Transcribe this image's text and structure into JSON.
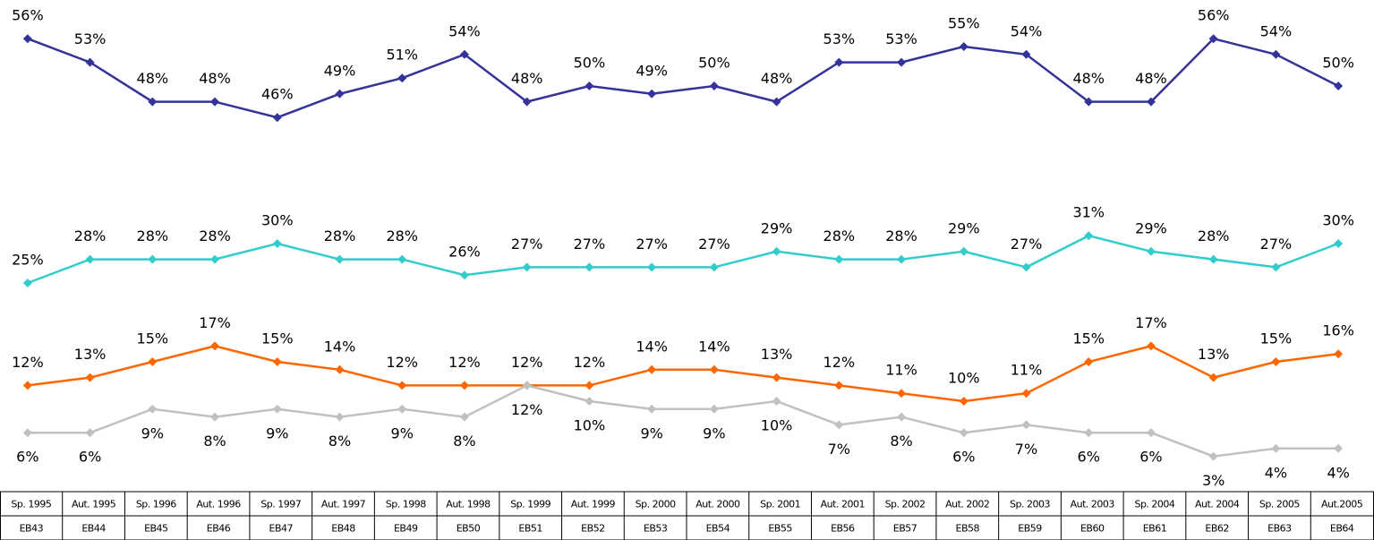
{
  "chart_data": {
    "type": "line",
    "categories": [
      "Sp. 1995",
      "Aut. 1995",
      "Sp. 1996",
      "Aut. 1996",
      "Sp. 1997",
      "Aut. 1997",
      "Sp. 1998",
      "Aut. 1998",
      "Sp. 1999",
      "Aut. 1999",
      "Sp. 2000",
      "Aut. 2000",
      "Sp. 2001",
      "Aut. 2001",
      "Sp. 2002",
      "Aut. 2002",
      "Sp. 2003",
      "Aut. 2003",
      "Sp. 2004",
      "Aut. 2004",
      "Sp. 2005",
      "Aut.2005"
    ],
    "category_codes": [
      "EB43",
      "EB44",
      "EB45",
      "EB46",
      "EB47",
      "EB48",
      "EB49",
      "EB50",
      "EB51",
      "EB52",
      "EB53",
      "EB54",
      "EB55",
      "EB56",
      "EB57",
      "EB58",
      "EB59",
      "EB60",
      "EB61",
      "EB62",
      "EB63",
      "EB64"
    ],
    "ylim": [
      0,
      60
    ],
    "series": [
      {
        "color": "#333399",
        "values": [
          56,
          53,
          48,
          48,
          46,
          49,
          51,
          54,
          48,
          50,
          49,
          50,
          48,
          53,
          53,
          55,
          54,
          48,
          48,
          56,
          54,
          50
        ],
        "value_labels": [
          "56%",
          "53%",
          "48%",
          "48%",
          "46%",
          "49%",
          "51%",
          "54%",
          "48%",
          "50%",
          "49%",
          "50%",
          "48%",
          "53%",
          "53%",
          "55%",
          "54%",
          "48%",
          "48%",
          "56%",
          "54%",
          "50%"
        ]
      },
      {
        "color": "#33CCCC",
        "values": [
          25,
          28,
          28,
          28,
          30,
          28,
          28,
          26,
          27,
          27,
          27,
          27,
          29,
          28,
          28,
          29,
          27,
          31,
          29,
          28,
          27,
          30
        ],
        "value_labels": [
          "25%",
          "28%",
          "28%",
          "28%",
          "30%",
          "28%",
          "28%",
          "26%",
          "27%",
          "27%",
          "27%",
          "27%",
          "29%",
          "28%",
          "28%",
          "29%",
          "27%",
          "31%",
          "29%",
          "28%",
          "27%",
          "30%"
        ]
      },
      {
        "color": "#FF6600",
        "values": [
          12,
          13,
          15,
          17,
          15,
          14,
          12,
          12,
          12,
          12,
          14,
          14,
          13,
          12,
          11,
          10,
          11,
          15,
          17,
          13,
          15,
          16
        ],
        "value_labels": [
          "12%",
          "13%",
          "15%",
          "17%",
          "15%",
          "14%",
          "12%",
          "12%",
          "12%",
          "12%",
          "14%",
          "14%",
          "13%",
          "12%",
          "11%",
          "10%",
          "11%",
          "15%",
          "17%",
          "13%",
          "15%",
          "16%"
        ]
      },
      {
        "color": "#C0C0C0",
        "values": [
          6,
          6,
          9,
          8,
          9,
          8,
          9,
          8,
          12,
          10,
          9,
          9,
          10,
          7,
          8,
          6,
          7,
          6,
          6,
          3,
          4,
          4
        ],
        "value_labels": [
          "6%",
          "6%",
          "9%",
          "8%",
          "9%",
          "8%",
          "9%",
          "8%",
          "12%",
          "10%",
          "9%",
          "9%",
          "10%",
          "7%",
          "8%",
          "6%",
          "7%",
          "6%",
          "6%",
          "3%",
          "4%",
          "4%"
        ]
      }
    ]
  }
}
